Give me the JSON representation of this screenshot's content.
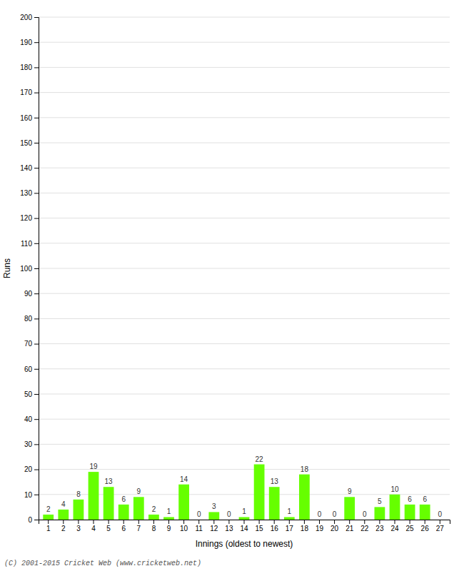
{
  "chart_data": {
    "type": "bar",
    "categories": [
      "1",
      "2",
      "3",
      "4",
      "5",
      "6",
      "7",
      "8",
      "9",
      "10",
      "11",
      "12",
      "13",
      "14",
      "15",
      "16",
      "17",
      "18",
      "19",
      "20",
      "21",
      "22",
      "23",
      "24",
      "25",
      "26",
      "27"
    ],
    "values": [
      2,
      4,
      8,
      19,
      13,
      6,
      9,
      2,
      1,
      14,
      0,
      3,
      0,
      1,
      22,
      13,
      1,
      18,
      0,
      0,
      9,
      0,
      5,
      10,
      6,
      6,
      0
    ],
    "color": "#66ff00",
    "xlabel": "Innings (oldest to newest)",
    "ylabel": "Runs",
    "ylim": [
      0,
      200
    ],
    "yticks": [
      0,
      10,
      20,
      30,
      40,
      50,
      60,
      70,
      80,
      90,
      100,
      110,
      120,
      130,
      140,
      150,
      160,
      170,
      180,
      190,
      200
    ],
    "grid": true,
    "data_labels": true,
    "annotations": [
      "(C) 2001-2015 Cricket Web (www.cricketweb.net)"
    ]
  }
}
